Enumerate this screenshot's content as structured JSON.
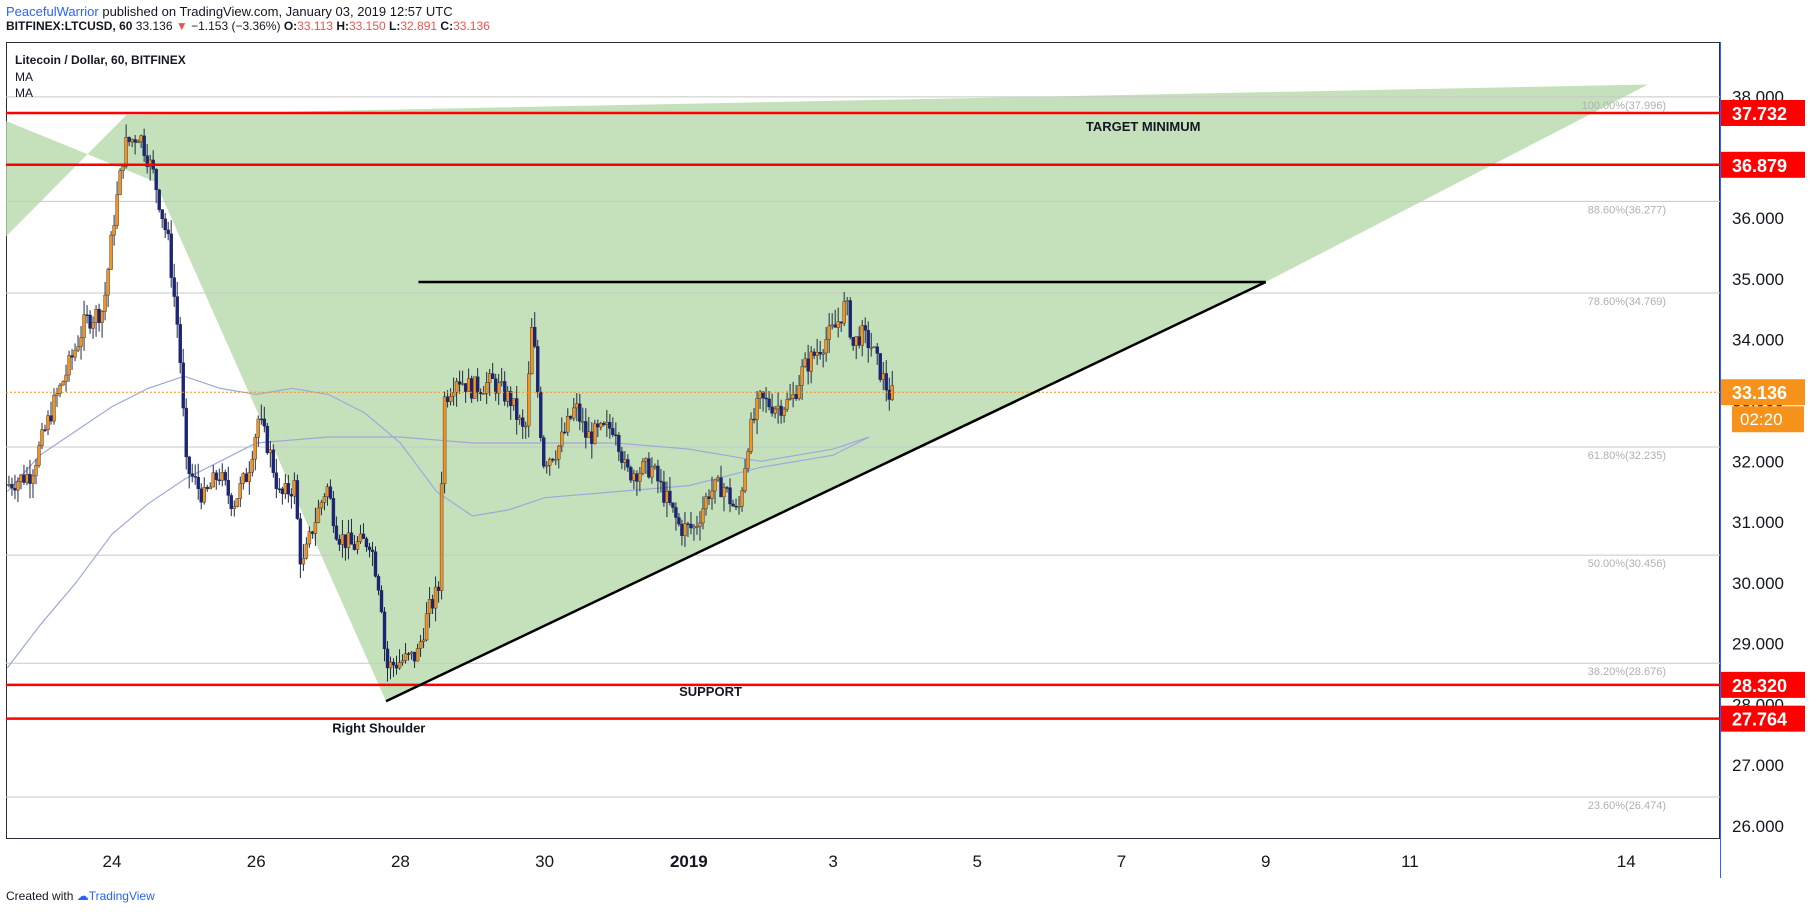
{
  "header": {
    "author": "PeacefulWarrior",
    "published_text": "published on TradingView.com, January 03, 2019 12:57 UTC",
    "symbol": "BITFINEX:LTCUSD, 60",
    "last": "33.136",
    "arrow": "▼",
    "change": "−1.153 (−3.36%)",
    "o_label": "O:",
    "o_value": "33.113",
    "h_label": "H:",
    "h_value": "33.150",
    "l_label": "L:",
    "l_value": "32.891",
    "c_label": "C:",
    "c_value": "33.136"
  },
  "legend": {
    "title": "Litecoin / Dollar, 60, BITFINEX",
    "ma1": "MA",
    "ma2": "MA"
  },
  "footer": {
    "created_with": "Created with",
    "brand": "TradingView"
  },
  "colors": {
    "up_candle": "#f7931a",
    "down_candle": "#1a237e",
    "red_line": "#ff0000",
    "fill_green": "#b5d8a8",
    "ma_color": "#9fa8da",
    "fib_line": "#c8c8c8",
    "current_price_badge": "#f7931a"
  },
  "chart_data": {
    "type": "candlestick",
    "title": "Litecoin / Dollar, 60, BITFINEX",
    "ylim": [
      25.8,
      38.9
    ],
    "y_ticks": [
      "26.000",
      "27.000",
      "28.000",
      "29.000",
      "30.000",
      "31.000",
      "32.000",
      "33.000",
      "34.000",
      "35.000",
      "36.000",
      "37.000",
      "38.000"
    ],
    "x_ticks": [
      {
        "label": "24",
        "day": 0
      },
      {
        "label": "26",
        "day": 2
      },
      {
        "label": "28",
        "day": 4
      },
      {
        "label": "30",
        "day": 6
      },
      {
        "label": "2019",
        "day": 8
      },
      {
        "label": "3",
        "day": 10
      },
      {
        "label": "5",
        "day": 12
      },
      {
        "label": "7",
        "day": 14
      },
      {
        "label": "9",
        "day": 16
      },
      {
        "label": "11",
        "day": 18
      },
      {
        "label": "14",
        "day": 21
      }
    ],
    "xlim_days": [
      -1.47,
      22.3
    ],
    "price_path": [
      {
        "day": -1.45,
        "price": 31.6
      },
      {
        "day": -1.1,
        "price": 31.8
      },
      {
        "day": -0.8,
        "price": 32.9
      },
      {
        "day": -0.6,
        "price": 33.5
      },
      {
        "day": -0.35,
        "price": 34.3
      },
      {
        "day": -0.1,
        "price": 34.5
      },
      {
        "day": 0.05,
        "price": 36.0
      },
      {
        "day": 0.2,
        "price": 37.2
      },
      {
        "day": 0.4,
        "price": 37.4
      },
      {
        "day": 0.6,
        "price": 36.7
      },
      {
        "day": 0.8,
        "price": 35.6
      },
      {
        "day": 0.95,
        "price": 34.0
      },
      {
        "day": 1.05,
        "price": 31.9
      },
      {
        "day": 1.3,
        "price": 31.4
      },
      {
        "day": 1.5,
        "price": 31.8
      },
      {
        "day": 1.7,
        "price": 31.3
      },
      {
        "day": 1.9,
        "price": 31.8
      },
      {
        "day": 2.05,
        "price": 32.7
      },
      {
        "day": 2.2,
        "price": 32.2
      },
      {
        "day": 2.35,
        "price": 31.4
      },
      {
        "day": 2.55,
        "price": 31.6
      },
      {
        "day": 2.65,
        "price": 30.2
      },
      {
        "day": 2.8,
        "price": 30.9
      },
      {
        "day": 3.0,
        "price": 31.6
      },
      {
        "day": 3.15,
        "price": 30.8
      },
      {
        "day": 3.35,
        "price": 30.6
      },
      {
        "day": 3.6,
        "price": 30.7
      },
      {
        "day": 3.75,
        "price": 29.8
      },
      {
        "day": 3.82,
        "price": 28.6
      },
      {
        "day": 4.0,
        "price": 28.7
      },
      {
        "day": 4.25,
        "price": 28.8
      },
      {
        "day": 4.4,
        "price": 29.5
      },
      {
        "day": 4.55,
        "price": 29.9
      },
      {
        "day": 4.62,
        "price": 33.0
      },
      {
        "day": 4.8,
        "price": 33.4
      },
      {
        "day": 5.0,
        "price": 33.2
      },
      {
        "day": 5.3,
        "price": 33.3
      },
      {
        "day": 5.55,
        "price": 33.0
      },
      {
        "day": 5.75,
        "price": 32.4
      },
      {
        "day": 5.85,
        "price": 34.3
      },
      {
        "day": 6.0,
        "price": 32.0
      },
      {
        "day": 6.2,
        "price": 32.2
      },
      {
        "day": 6.45,
        "price": 32.9
      },
      {
        "day": 6.6,
        "price": 32.4
      },
      {
        "day": 6.85,
        "price": 32.5
      },
      {
        "day": 7.0,
        "price": 32.6
      },
      {
        "day": 7.15,
        "price": 31.8
      },
      {
        "day": 7.5,
        "price": 31.9
      },
      {
        "day": 7.7,
        "price": 31.4
      },
      {
        "day": 7.9,
        "price": 30.9
      },
      {
        "day": 8.1,
        "price": 30.9
      },
      {
        "day": 8.3,
        "price": 31.5
      },
      {
        "day": 8.5,
        "price": 31.6
      },
      {
        "day": 8.7,
        "price": 31.1
      },
      {
        "day": 8.85,
        "price": 32.4
      },
      {
        "day": 9.0,
        "price": 33.0
      },
      {
        "day": 9.25,
        "price": 32.9
      },
      {
        "day": 9.45,
        "price": 33.0
      },
      {
        "day": 9.6,
        "price": 33.5
      },
      {
        "day": 9.85,
        "price": 33.9
      },
      {
        "day": 10.05,
        "price": 34.2
      },
      {
        "day": 10.2,
        "price": 34.6
      },
      {
        "day": 10.3,
        "price": 33.9
      },
      {
        "day": 10.4,
        "price": 34.1
      },
      {
        "day": 10.55,
        "price": 33.9
      },
      {
        "day": 10.7,
        "price": 33.4
      },
      {
        "day": 10.8,
        "price": 33.1
      }
    ],
    "ma_fast": [
      {
        "day": -1.45,
        "price": 28.6
      },
      {
        "day": -1.0,
        "price": 29.3
      },
      {
        "day": -0.5,
        "price": 30.0
      },
      {
        "day": 0.0,
        "price": 30.8
      },
      {
        "day": 0.5,
        "price": 31.3
      },
      {
        "day": 1.0,
        "price": 31.7
      },
      {
        "day": 1.5,
        "price": 32.0
      },
      {
        "day": 2.0,
        "price": 32.3
      },
      {
        "day": 3.0,
        "price": 32.4
      },
      {
        "day": 4.0,
        "price": 32.4
      },
      {
        "day": 5.0,
        "price": 32.3
      },
      {
        "day": 6.0,
        "price": 32.3
      },
      {
        "day": 7.0,
        "price": 32.3
      },
      {
        "day": 8.0,
        "price": 32.2
      },
      {
        "day": 9.0,
        "price": 32.0
      },
      {
        "day": 10.0,
        "price": 32.2
      },
      {
        "day": 10.5,
        "price": 32.4
      }
    ],
    "ma_slow": [
      {
        "day": -1.45,
        "price": 31.5
      },
      {
        "day": -1.0,
        "price": 32.1
      },
      {
        "day": 0.0,
        "price": 32.9
      },
      {
        "day": 0.5,
        "price": 33.2
      },
      {
        "day": 1.0,
        "price": 33.4
      },
      {
        "day": 1.5,
        "price": 33.2
      },
      {
        "day": 2.0,
        "price": 33.1
      },
      {
        "day": 2.5,
        "price": 33.2
      },
      {
        "day": 3.0,
        "price": 33.1
      },
      {
        "day": 3.5,
        "price": 32.8
      },
      {
        "day": 4.0,
        "price": 32.3
      },
      {
        "day": 4.5,
        "price": 31.5
      },
      {
        "day": 5.0,
        "price": 31.1
      },
      {
        "day": 5.5,
        "price": 31.2
      },
      {
        "day": 6.0,
        "price": 31.4
      },
      {
        "day": 7.0,
        "price": 31.5
      },
      {
        "day": 8.0,
        "price": 31.6
      },
      {
        "day": 9.0,
        "price": 31.9
      },
      {
        "day": 10.0,
        "price": 32.1
      },
      {
        "day": 10.5,
        "price": 32.4
      }
    ],
    "fib_levels": [
      {
        "label": "100.00%(37.996)",
        "price": 37.996
      },
      {
        "label": "88.60%(36.277)",
        "price": 36.277
      },
      {
        "label": "78.60%(34.769)",
        "price": 34.769
      },
      {
        "label": "61.80%(32.235)",
        "price": 32.235
      },
      {
        "label": "50.00%(30.456)",
        "price": 30.456
      },
      {
        "label": "38.20%(28.676)",
        "price": 28.676
      },
      {
        "label": "23.60%(26.474)",
        "price": 26.474
      }
    ],
    "horizontal_lines": [
      {
        "label": "37.732",
        "price": 37.732
      },
      {
        "label": "36.879",
        "price": 36.879
      },
      {
        "label": "28.320",
        "price": 28.32
      },
      {
        "label": "27.764",
        "price": 27.764
      }
    ],
    "current_price": {
      "label": "33.136",
      "price": 33.136,
      "countdown": "02:20"
    },
    "resistance_line": {
      "day_start": 4.25,
      "day_end": 16.0,
      "price": 34.95
    },
    "trend_line": {
      "start": {
        "day": 3.8,
        "price": 28.05
      },
      "end": {
        "day": 16.0,
        "price": 34.95
      }
    },
    "green_region": [
      {
        "day": -1.47,
        "price": 35.7
      },
      {
        "day": 0.2,
        "price": 37.7
      },
      {
        "day": 21.3,
        "price": 38.2
      },
      {
        "day": 16.0,
        "price": 34.95
      },
      {
        "day": 3.8,
        "price": 28.05
      },
      {
        "day": 0.6,
        "price": 36.6
      },
      {
        "day": -1.47,
        "price": 37.6
      }
    ],
    "annotations": [
      {
        "text": "TARGET MINIMUM",
        "day": 14.3,
        "price": 37.5
      },
      {
        "text": "SUPPORT",
        "day": 8.3,
        "price": 28.2
      },
      {
        "text": "Right Shoulder",
        "day": 3.7,
        "price": 27.6
      }
    ]
  }
}
